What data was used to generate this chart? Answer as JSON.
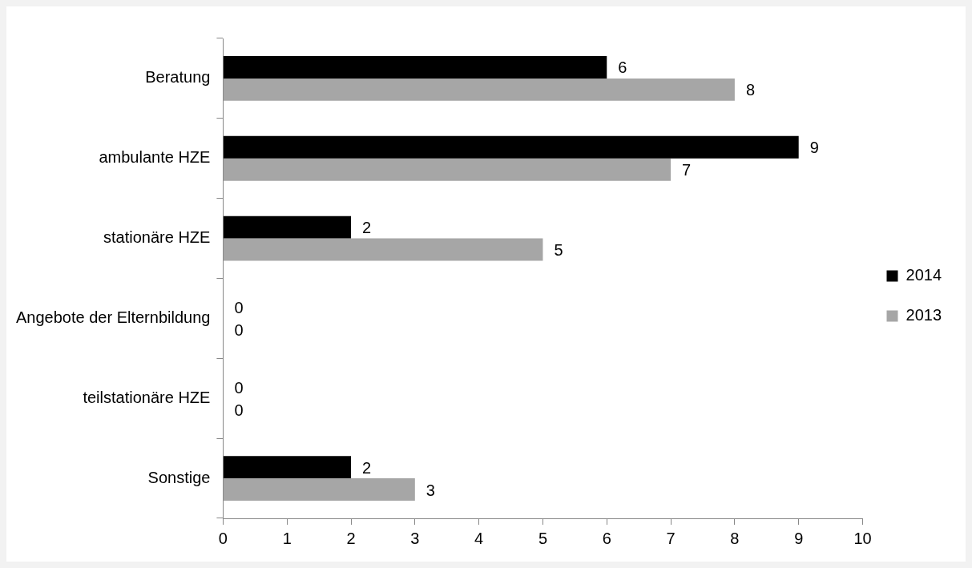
{
  "chart_data": {
    "type": "bar",
    "orientation": "horizontal",
    "categories": [
      "Beratung",
      "ambulante HZE",
      "stationäre HZE",
      "Angebote der Elternbildung",
      "teilstationäre HZE",
      "Sonstige"
    ],
    "series": [
      {
        "name": "2014",
        "color": "#000000",
        "values": [
          6,
          9,
          2,
          0,
          0,
          2
        ]
      },
      {
        "name": "2013",
        "color": "#a6a6a6",
        "values": [
          8,
          7,
          5,
          0,
          0,
          3
        ]
      }
    ],
    "xlim": [
      0,
      10
    ],
    "xticks": [
      0,
      1,
      2,
      3,
      4,
      5,
      6,
      7,
      8,
      9,
      10
    ],
    "grid": false,
    "legend": "right",
    "data_labels": true
  }
}
